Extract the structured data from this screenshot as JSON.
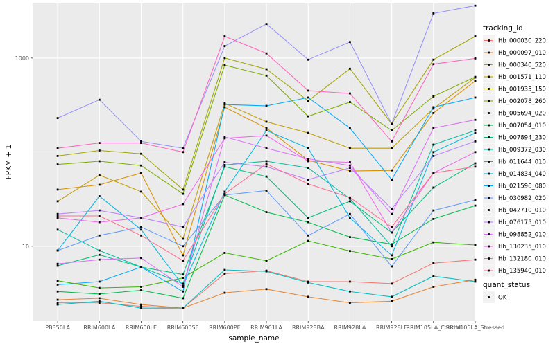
{
  "chart_data": {
    "type": "line",
    "xlabel": "sample_name",
    "ylabel": "FPKM + 1",
    "yscale": "log10",
    "ylim": [
      1.6,
      3800
    ],
    "yticks": [
      10,
      1000
    ],
    "grid": true,
    "legend_position": "right",
    "categories": [
      "PB350LA",
      "RRIM600LA",
      "RRIM600LE",
      "RRIM600SE",
      "RRIM600PE",
      "RRIM901LA",
      "RRIM928BA",
      "RRIM928LA",
      "RRIM928LE",
      "RRIM105LA_Control",
      "RRIM105LA_Stressed"
    ],
    "category_labels": [
      "PB350LA",
      "RRIM600LA",
      "RRIM600LE",
      "RRIM600SE",
      "RRIM600PE",
      "RRIM901LA",
      "RRIM928BA",
      "RRIM928LA",
      "RRIM928LE",
      "RRIM105LA_Control",
      "RRIM105LA_Stressed"
    ],
    "legend": {
      "color_title": "tracking_id",
      "shape_title": "quant_status",
      "shape_items": [
        "OK"
      ]
    },
    "series": [
      {
        "name": "Hb_000030_220",
        "color": "#F8766D",
        "values": [
          2.5,
          2.5,
          2.3,
          2.2,
          5.1,
          5.5,
          4.2,
          4.2,
          4.0,
          6.6,
          7.2
        ]
      },
      {
        "name": "Hb_000097_010",
        "color": "#EA8331",
        "values": [
          2.7,
          2.8,
          2.4,
          2.2,
          3.2,
          3.5,
          2.9,
          2.5,
          2.6,
          3.7,
          4.4
        ]
      },
      {
        "name": "Hb_000340_520",
        "color": "#D89000",
        "values": [
          40,
          45,
          60,
          8,
          300,
          180,
          82,
          63,
          64,
          260,
          570
        ]
      },
      {
        "name": "Hb_001571_110",
        "color": "#C09B00",
        "values": [
          30,
          57,
          38,
          12,
          330,
          210,
          160,
          110,
          110,
          290,
          620
        ]
      },
      {
        "name": "Hb_001935_150",
        "color": "#A3A500",
        "values": [
          91,
          104,
          96,
          40,
          1000,
          760,
          350,
          770,
          200,
          960,
          1700
        ]
      },
      {
        "name": "Hb_002078_260",
        "color": "#7CAE00",
        "values": [
          74,
          80,
          72,
          36,
          840,
          650,
          240,
          340,
          170,
          390,
          630
        ]
      },
      {
        "name": "Hb_005694_020",
        "color": "#39B600",
        "values": [
          4.3,
          3.6,
          3.7,
          4.6,
          8.5,
          7.0,
          11.4,
          8.9,
          7.3,
          11.0,
          10.3
        ]
      },
      {
        "name": "Hb_007054_010",
        "color": "#00BB4E",
        "values": [
          3.3,
          3.1,
          3.4,
          2.8,
          35,
          23,
          18,
          12.5,
          10.5,
          19.5,
          27
        ]
      },
      {
        "name": "Hb_007894_230",
        "color": "#00BF7D",
        "values": [
          6.2,
          8.1,
          6.0,
          5.0,
          70,
          55,
          20,
          30,
          14,
          42,
          76
        ]
      },
      {
        "name": "Hb_009372_030",
        "color": "#00C1A3",
        "values": [
          15,
          9,
          6,
          4,
          73,
          80,
          68,
          32,
          10,
          120,
          170
        ]
      },
      {
        "name": "Hb_011644_010",
        "color": "#00BFC4",
        "values": [
          2.4,
          2.6,
          2.2,
          2.2,
          5.6,
          5.4,
          4.1,
          3.3,
          2.9,
          4.8,
          4.2
        ]
      },
      {
        "name": "Hb_014834_040",
        "color": "#00B8E7",
        "values": [
          9,
          34,
          15,
          3.8,
          38,
          170,
          110,
          20,
          8,
          100,
          160
        ]
      },
      {
        "name": "Hb_021596_080",
        "color": "#00A9FF",
        "values": [
          3.9,
          4.2,
          6.0,
          3.3,
          320,
          310,
          380,
          180,
          51,
          300,
          380
        ]
      },
      {
        "name": "Hb_030982_020",
        "color": "#619CFF",
        "values": [
          9,
          13,
          16,
          10,
          35,
          39,
          13,
          22,
          6.1,
          24,
          31
        ]
      },
      {
        "name": "Hb_042710_010",
        "color": "#9590FF",
        "values": [
          230,
          360,
          130,
          110,
          1340,
          2300,
          960,
          1480,
          200,
          2980,
          3600
        ]
      },
      {
        "name": "Hb_076175_010",
        "color": "#B983FF",
        "values": [
          22,
          24,
          20,
          16,
          78,
          70,
          51,
          68,
          25,
          91,
          130
        ]
      },
      {
        "name": "Hb_098852_010",
        "color": "#DB72FB",
        "values": [
          6.5,
          7.2,
          7.5,
          3.7,
          145,
          110,
          85,
          72,
          22,
          180,
          220
        ]
      },
      {
        "name": "Hb_130235_010",
        "color": "#F066EA",
        "values": [
          20,
          18,
          20,
          28,
          140,
          150,
          80,
          78,
          14,
          60,
          100
        ]
      },
      {
        "name": "Hb_132180_010",
        "color": "#FF62BC",
        "values": [
          110,
          125,
          125,
          100,
          1700,
          1120,
          450,
          420,
          130,
          860,
          990
        ]
      },
      {
        "name": "Hb_135940_010",
        "color": "#FF6C91",
        "values": [
          21,
          21,
          13,
          7,
          36,
          75,
          46,
          33,
          16,
          60,
          70
        ]
      }
    ]
  }
}
